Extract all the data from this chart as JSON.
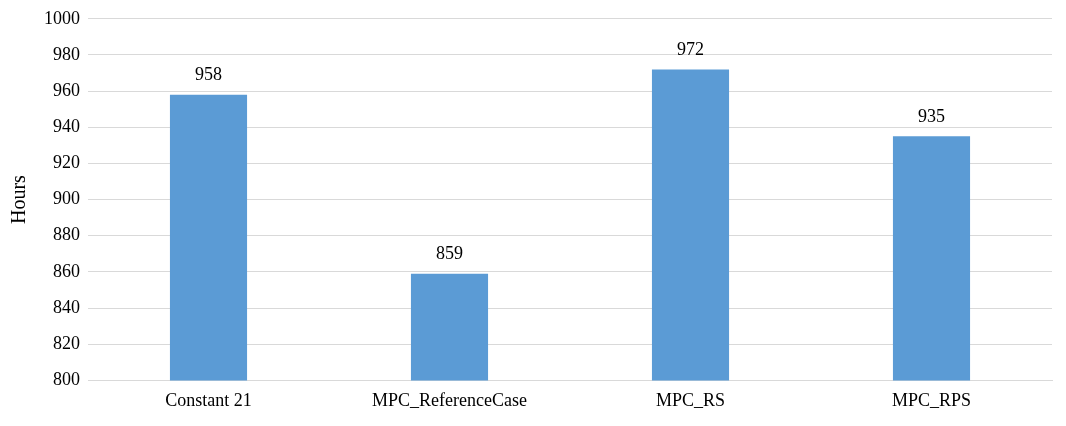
{
  "chart_data": {
    "type": "bar",
    "ylabel": "Hours",
    "categories": [
      "Constant 21",
      "MPC_ReferenceCase",
      "MPC_RS",
      "MPC_RPS"
    ],
    "values": [
      958,
      859,
      972,
      935
    ],
    "color": "#5b9bd5",
    "ylim": [
      800,
      1000
    ],
    "yticks": [
      800,
      820,
      840,
      860,
      880,
      900,
      920,
      940,
      960,
      980,
      1000
    ],
    "grid": "y",
    "data_labels": true,
    "legend": false
  }
}
